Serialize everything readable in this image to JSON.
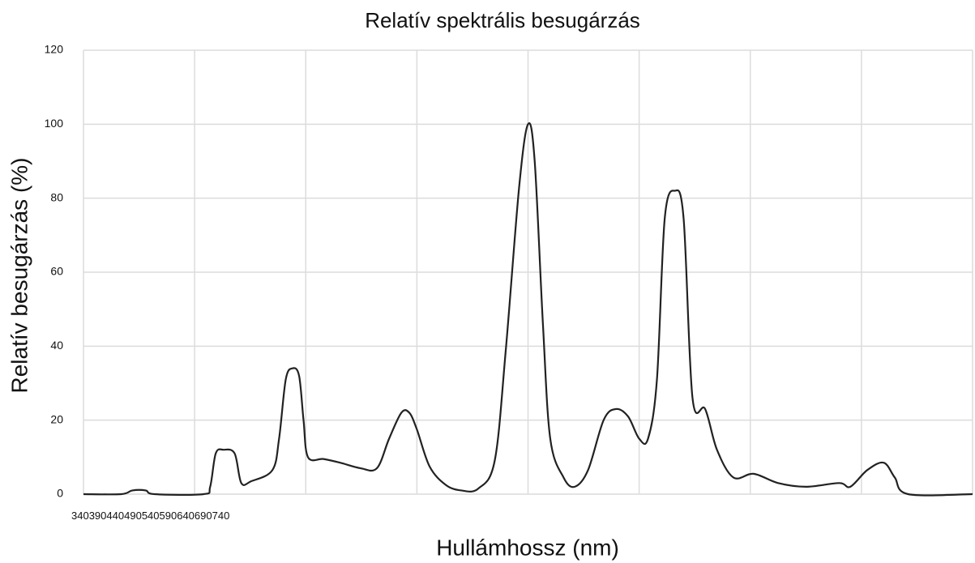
{
  "chart_data": {
    "type": "line",
    "title": "Relatív spektrális besugárzás",
    "xlabel": "Hullámhossz (nm)",
    "ylabel": "Relatív besugárzás (%)",
    "xlim": [
      340,
      740
    ],
    "xticks": [
      340,
      390,
      440,
      490,
      540,
      590,
      640,
      690,
      740
    ],
    "ylim": [
      0,
      120
    ],
    "yticks": [
      0,
      20,
      40,
      60,
      80,
      100,
      120
    ],
    "grid": true,
    "series": [
      {
        "name": "Relatív besugárzás",
        "color": "#222222",
        "x": [
          340,
          357,
          362,
          368,
          372,
          394,
          397,
          399.5,
          403,
          408,
          411,
          415.5,
          425,
          428,
          431,
          434,
          437,
          439,
          441,
          448,
          455.5,
          464.7,
          472,
          477.5,
          483,
          486.6,
          490,
          495.7,
          503,
          510,
          517.6,
          525,
          530,
          536,
          540,
          543,
          546.7,
          550,
          556,
          561,
          567,
          574,
          579.5,
          585,
          590,
          594,
          598,
          601.5,
          606,
          610,
          614,
          619.7,
          625,
          632.4,
          641.5,
          652.5,
          665,
          680,
          685,
          692.6,
          700,
          705,
          711,
          740
        ],
        "values": [
          0,
          0,
          1,
          1,
          0,
          0,
          2,
          11,
          12,
          11,
          3,
          3.5,
          6.5,
          15,
          31,
          34,
          32,
          20,
          10,
          9.5,
          8.5,
          7,
          7,
          15,
          22,
          22,
          17.5,
          7.5,
          2.5,
          1,
          1.5,
          9,
          39,
          83,
          100,
          90,
          46,
          15,
          4.5,
          2,
          6.5,
          20,
          23,
          21,
          15,
          15,
          31,
          74.5,
          82,
          74.5,
          26,
          23,
          12,
          4.5,
          5.5,
          3,
          2,
          3,
          2,
          6.5,
          8.5,
          4.5,
          0,
          0
        ]
      }
    ]
  }
}
